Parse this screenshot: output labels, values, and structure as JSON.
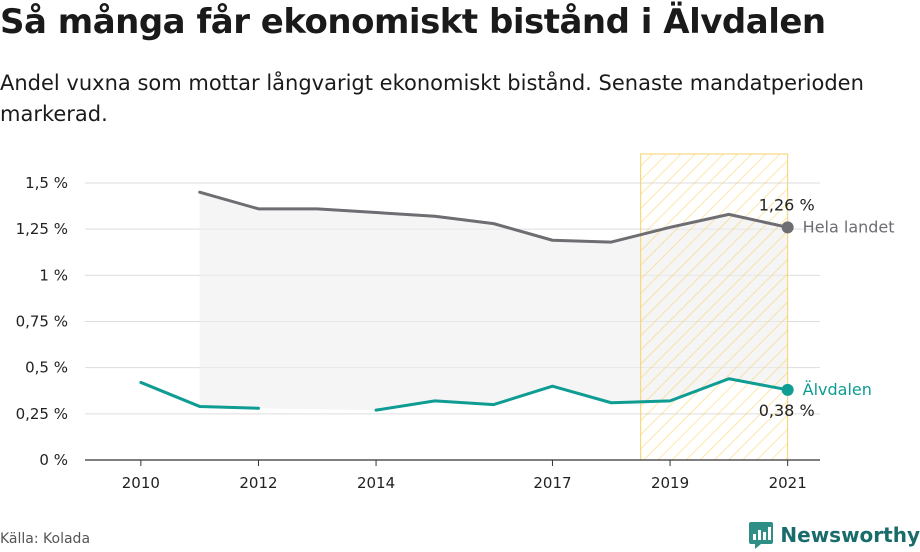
{
  "title": "Så många får ekonomiskt bistånd i Älvdalen",
  "subtitle": "Andel vuxna som mottar långvarigt ekonomiskt bistånd. Senaste mandatperioden markerad.",
  "source": "Källa: Kolada",
  "brand": "Newsworthy",
  "chart_data": {
    "type": "line",
    "x": [
      2010,
      2011,
      2012,
      2013,
      2014,
      2015,
      2016,
      2017,
      2018,
      2019,
      2020,
      2021
    ],
    "x_ticks": [
      2010,
      2012,
      2014,
      2017,
      2019,
      2021
    ],
    "x_tick_labels": [
      "2010",
      "2012",
      "2014",
      "2017",
      "2019",
      "2021"
    ],
    "y_ticks": [
      0,
      0.25,
      0.5,
      0.75,
      1,
      1.25,
      1.5
    ],
    "y_tick_labels": [
      "0 %",
      "0,25 %",
      "0,5 %",
      "0,75 %",
      "1 %",
      "1,25 %",
      "1,5 %"
    ],
    "ylim": [
      0,
      1.5
    ],
    "grid": true,
    "highlight_period": [
      2018.5,
      2021
    ],
    "highlight_color": "#f5c842",
    "series": [
      {
        "name": "Hela landet",
        "color": "#6e6d72",
        "values": [
          null,
          1.45,
          1.36,
          1.36,
          1.34,
          1.32,
          1.28,
          1.19,
          1.18,
          1.26,
          1.33,
          1.26
        ],
        "end_value_label": "1,26 %"
      },
      {
        "name": "Älvdalen",
        "color": "#0e9c93",
        "values": [
          0.42,
          0.29,
          0.28,
          null,
          0.27,
          0.32,
          0.3,
          0.4,
          0.31,
          0.32,
          0.44,
          0.38
        ],
        "end_value_label": "0,38 %"
      }
    ]
  }
}
